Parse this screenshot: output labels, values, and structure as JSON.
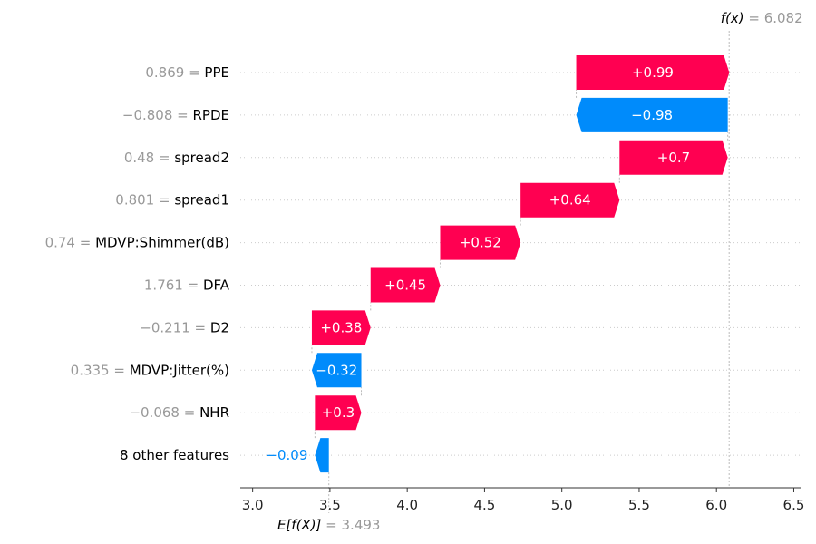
{
  "chart_data": {
    "type": "waterfall",
    "base_value": 3.493,
    "base_label_prefix": "E[f(X)]",
    "base_label_value": "= 3.493",
    "output_value": 6.082,
    "output_label_prefix": "f(x)",
    "output_label_value": "= 6.082",
    "xlim": [
      2.92,
      6.55
    ],
    "x_ticks": [
      3.0,
      3.5,
      4.0,
      4.5,
      5.0,
      5.5,
      6.0,
      6.5
    ],
    "x_tick_labels": [
      "3.0",
      "3.5",
      "4.0",
      "4.5",
      "5.0",
      "5.5",
      "6.0",
      "6.5"
    ],
    "colors": {
      "positive": "#ff0051",
      "negative": "#008bfb",
      "value_text": "#999999",
      "feature_text": "#000000"
    },
    "rows": [
      {
        "value_text": "0.869 =",
        "feature": "PPE",
        "contribution": 0.99,
        "label": "+0.99"
      },
      {
        "value_text": "−0.808 =",
        "feature": "RPDE",
        "contribution": -0.98,
        "label": "−0.98"
      },
      {
        "value_text": "0.48 =",
        "feature": "spread2",
        "contribution": 0.7,
        "label": "+0.7"
      },
      {
        "value_text": "0.801 =",
        "feature": "spread1",
        "contribution": 0.64,
        "label": "+0.64"
      },
      {
        "value_text": "0.74 =",
        "feature": "MDVP:Shimmer(dB)",
        "contribution": 0.52,
        "label": "+0.52"
      },
      {
        "value_text": "1.761 =",
        "feature": "DFA",
        "contribution": 0.45,
        "label": "+0.45"
      },
      {
        "value_text": "−0.211 =",
        "feature": "D2",
        "contribution": 0.38,
        "label": "+0.38"
      },
      {
        "value_text": "0.335 =",
        "feature": "MDVP:Jitter(%)",
        "contribution": -0.32,
        "label": "−0.32"
      },
      {
        "value_text": "−0.068 =",
        "feature": "NHR",
        "contribution": 0.3,
        "label": "+0.3"
      },
      {
        "value_text": "",
        "feature": "8 other features",
        "contribution": -0.09,
        "label": "−0.09",
        "label_outside": true
      }
    ]
  }
}
